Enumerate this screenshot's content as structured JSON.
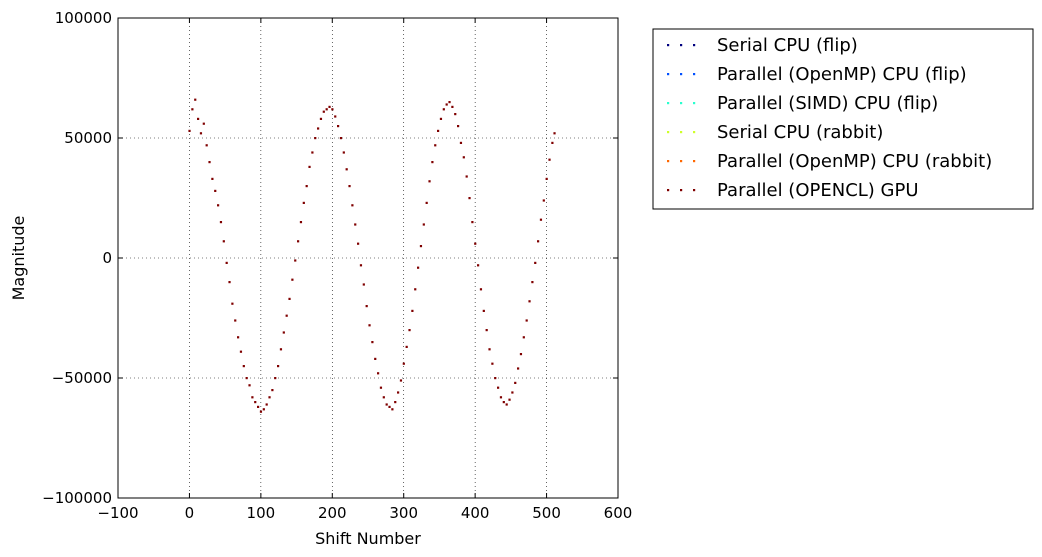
{
  "chart_data": {
    "type": "scatter",
    "title": "",
    "xlabel": "Shift Number",
    "ylabel": "Magnitude",
    "xlim": [
      -100,
      600
    ],
    "ylim": [
      -100000,
      100000
    ],
    "xticks": [
      -100,
      0,
      100,
      200,
      300,
      400,
      500,
      600
    ],
    "yticks": [
      -100000,
      -50000,
      0,
      50000,
      100000
    ],
    "xtick_labels": [
      "−100",
      "0",
      "100",
      "200",
      "300",
      "400",
      "500",
      "600"
    ],
    "ytick_labels": [
      "−100000",
      "−50000",
      "0",
      "50000",
      "100000"
    ],
    "grid": true,
    "legend_position": "outside-right-top",
    "legend": [
      {
        "name": "Serial CPU (flip)",
        "color": "#00007f"
      },
      {
        "name": "Parallel (OpenMP) CPU (flip)",
        "color": "#0050ff"
      },
      {
        "name": "Parallel (SIMD) CPU (flip)",
        "color": "#29ffce"
      },
      {
        "name": "Serial CPU (rabbit)",
        "color": "#ceff29"
      },
      {
        "name": "Parallel (OpenMP) CPU (rabbit)",
        "color": "#ff6800"
      },
      {
        "name": "Parallel (OPENCL) GPU",
        "color": "#7f0000"
      }
    ],
    "series_note_visible": "all series overlap; only the top series points are visible",
    "x": [
      0,
      4,
      8,
      12,
      16,
      20,
      24,
      28,
      32,
      36,
      40,
      44,
      48,
      52,
      56,
      60,
      64,
      68,
      72,
      76,
      80,
      84,
      88,
      92,
      96,
      100,
      104,
      108,
      112,
      116,
      120,
      124,
      128,
      132,
      136,
      140,
      144,
      148,
      152,
      156,
      160,
      164,
      168,
      172,
      176,
      180,
      184,
      188,
      192,
      196,
      200,
      204,
      208,
      212,
      216,
      220,
      224,
      228,
      232,
      236,
      240,
      244,
      248,
      252,
      256,
      260,
      264,
      268,
      272,
      276,
      280,
      284,
      288,
      292,
      296,
      300,
      304,
      308,
      312,
      316,
      320,
      324,
      328,
      332,
      336,
      340,
      344,
      348,
      352,
      356,
      360,
      364,
      368,
      372,
      376,
      380,
      384,
      388,
      392,
      396,
      400,
      404,
      408,
      412,
      416,
      420,
      424,
      428,
      432,
      436,
      440,
      444,
      448,
      452,
      456,
      460,
      464,
      468,
      472,
      476,
      480,
      484,
      488,
      492,
      496,
      500,
      504,
      508,
      511
    ],
    "y": [
      53000,
      62000,
      66000,
      58000,
      52000,
      56000,
      47000,
      40000,
      33000,
      28000,
      22000,
      15000,
      7000,
      -2000,
      -10000,
      -19000,
      -26000,
      -33000,
      -39000,
      -45000,
      -50000,
      -53000,
      -58000,
      -60000,
      -62000,
      -64000,
      -63000,
      -61000,
      -58000,
      -55000,
      -50000,
      -45000,
      -38000,
      -31000,
      -24000,
      -17000,
      -9000,
      -1000,
      7000,
      15000,
      23000,
      30000,
      38000,
      44000,
      50000,
      54000,
      58000,
      61000,
      62000,
      63000,
      62000,
      59000,
      55000,
      50000,
      44000,
      37000,
      30000,
      22000,
      14000,
      6000,
      -3000,
      -11000,
      -20000,
      -28000,
      -35000,
      -42000,
      -48000,
      -54000,
      -58000,
      -61000,
      -62000,
      -63000,
      -60000,
      -56000,
      -51000,
      -44000,
      -37000,
      -30000,
      -22000,
      -13000,
      -4000,
      5000,
      14000,
      23000,
      32000,
      40000,
      47000,
      53000,
      58000,
      62000,
      64000,
      65000,
      63000,
      60000,
      55000,
      48000,
      42000,
      34000,
      25000,
      15000,
      6000,
      -3000,
      -13000,
      -22000,
      -30000,
      -38000,
      -44000,
      -50000,
      -54000,
      -58000,
      -60000,
      -61000,
      -59000,
      -56000,
      -52000,
      -46000,
      -40000,
      -33000,
      -26000,
      -18000,
      -10000,
      -2000,
      7000,
      16000,
      24000,
      33000,
      41000,
      48000,
      52000
    ]
  }
}
